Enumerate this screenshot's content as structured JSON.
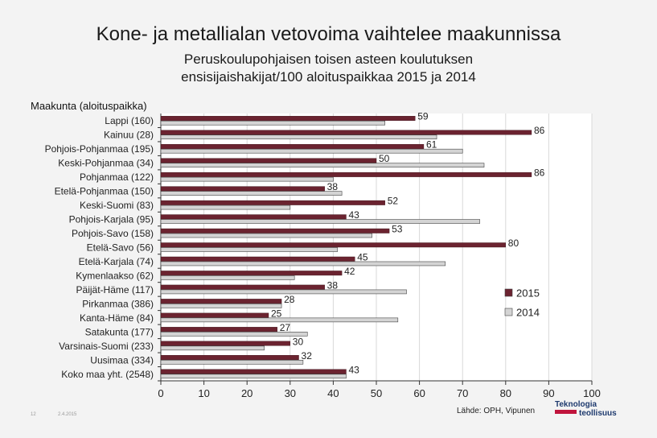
{
  "title": "Kone- ja metallialan vetovoima vaihtelee maakunnissa",
  "subtitle_line1": "Peruskoulupohjaisen toisen asteen koulutuksen",
  "subtitle_line2": "ensisijaishakijat/100 aloituspaikkaa 2015 ja 2014",
  "axis_caption": "Maakunta (aloituspaikka)",
  "source": "Lähde: OPH, Vipunen",
  "page_number": "12",
  "date": "2.4.2015",
  "logo_line1": "Teknologia",
  "logo_line2": "teollisuus",
  "colors": {
    "s2015": "#6b2330",
    "s2014": "#d4d4d4"
  },
  "chart_data": {
    "type": "bar",
    "orientation": "horizontal",
    "categories": [
      "Lappi (160)",
      "Kainuu (28)",
      "Pohjois-Pohjanmaa (195)",
      "Keski-Pohjanmaa (34)",
      "Pohjanmaa (122)",
      "Etelä-Pohjanmaa (150)",
      "Keski-Suomi (83)",
      "Pohjois-Karjala (95)",
      "Pohjois-Savo (158)",
      "Etelä-Savo (56)",
      "Etelä-Karjala (74)",
      "Kymenlaakso (62)",
      "Päijät-Häme (117)",
      "Pirkanmaa (386)",
      "Kanta-Häme (84)",
      "Satakunta (177)",
      "Varsinais-Suomi (233)",
      "Uusimaa (334)",
      "Koko maa yht. (2548)"
    ],
    "series": [
      {
        "name": "2015",
        "values": [
          59,
          86,
          61,
          50,
          86,
          38,
          52,
          43,
          53,
          80,
          45,
          42,
          38,
          28,
          25,
          27,
          30,
          32,
          43
        ],
        "labels": [
          "59",
          "86",
          "61",
          "50",
          "86",
          "38",
          "52",
          "43",
          "53",
          "80",
          "45",
          "42",
          "38",
          "28",
          "25",
          "27",
          "30",
          "32",
          "43"
        ]
      },
      {
        "name": "2014",
        "values": [
          52,
          64,
          70,
          75,
          40,
          42,
          30,
          74,
          49,
          41,
          66,
          31,
          57,
          28,
          55,
          34,
          24,
          33,
          43
        ]
      }
    ],
    "xlim": [
      0,
      100
    ],
    "xticks": [
      "0",
      "10",
      "20",
      "30",
      "40",
      "50",
      "60",
      "70",
      "80",
      "90",
      "100"
    ],
    "grid": true,
    "legend_position": "right"
  }
}
